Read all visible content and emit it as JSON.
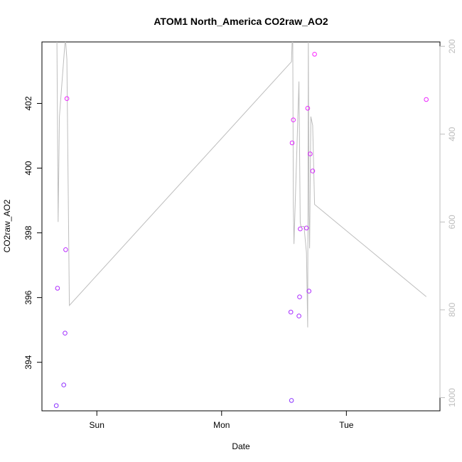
{
  "chart_data": {
    "type": "scatter",
    "title": "ATOM1 North_America CO2raw_AO2",
    "xlabel": "Date",
    "ylabel": "CO2raw_AO2",
    "x_ticks": [
      {
        "label": "Sun",
        "day": 1.0
      },
      {
        "label": "Mon",
        "day": 2.0
      },
      {
        "label": "Tue",
        "day": 3.0
      }
    ],
    "xlim": [
      0.56,
      3.75
    ],
    "y_left": {
      "ticks": [
        394,
        396,
        398,
        400,
        402
      ],
      "ylim": [
        392.5,
        403.9
      ]
    },
    "y_right": {
      "ticks": [
        200,
        400,
        600,
        800,
        1000
      ],
      "ylim": [
        1030,
        190
      ],
      "color": "#bdbdbd"
    },
    "colors": {
      "line": "#bdbdbd",
      "point_low": "#8833ff",
      "point_high": "#ff22ff"
    },
    "points": [
      {
        "x": 0.675,
        "y": 392.66
      },
      {
        "x": 0.685,
        "y": 396.29
      },
      {
        "x": 0.735,
        "y": 393.3
      },
      {
        "x": 0.745,
        "y": 394.9
      },
      {
        "x": 0.75,
        "y": 397.48
      },
      {
        "x": 0.76,
        "y": 402.15
      },
      {
        "x": 2.555,
        "y": 395.55
      },
      {
        "x": 2.56,
        "y": 392.82
      },
      {
        "x": 2.565,
        "y": 400.78
      },
      {
        "x": 2.575,
        "y": 401.49
      },
      {
        "x": 2.62,
        "y": 395.43
      },
      {
        "x": 2.625,
        "y": 396.02
      },
      {
        "x": 2.63,
        "y": 398.12
      },
      {
        "x": 2.68,
        "y": 398.15
      },
      {
        "x": 2.69,
        "y": 401.85
      },
      {
        "x": 2.7,
        "y": 396.2
      },
      {
        "x": 2.71,
        "y": 400.44
      },
      {
        "x": 2.73,
        "y": 399.91
      },
      {
        "x": 2.745,
        "y": 403.52
      },
      {
        "x": 3.64,
        "y": 402.12
      }
    ],
    "line_right_axis": {
      "x": [
        0.68,
        0.69,
        0.7,
        0.745,
        0.75,
        0.76,
        0.78,
        2.56,
        2.565,
        2.57,
        2.575,
        2.58,
        2.62,
        2.63,
        2.635,
        2.66,
        2.68,
        2.69,
        2.695,
        2.7,
        2.705,
        2.715,
        2.73,
        2.745,
        3.64
      ],
      "y": [
        190,
        600,
        360,
        190,
        190,
        230,
        790,
        235,
        190,
        190,
        560,
        650,
        280,
        600,
        610,
        610,
        670,
        840,
        180,
        580,
        660,
        360,
        380,
        560,
        770
      ]
    }
  }
}
